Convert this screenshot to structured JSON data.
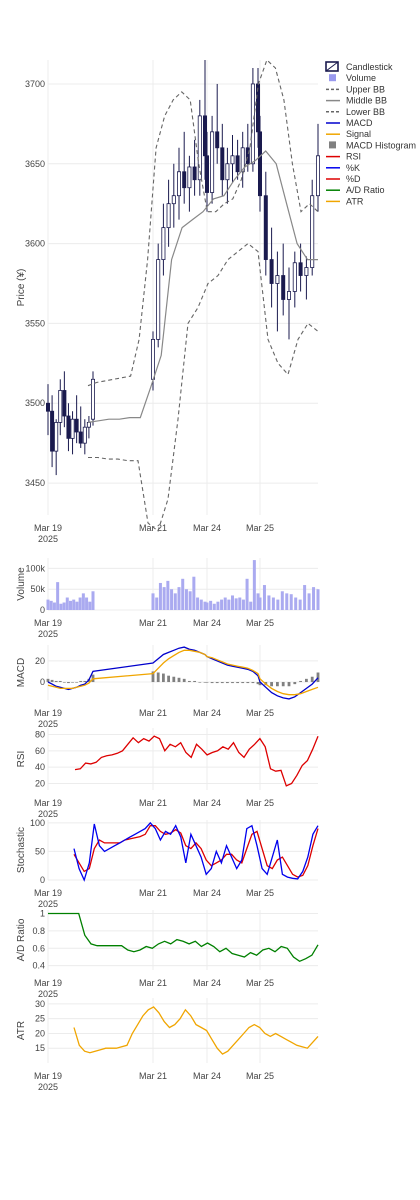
{
  "chart_data": {
    "type": "line",
    "x_ticks": [
      {
        "date": "2025-03-19",
        "label": "Mar 19",
        "sub": "2025"
      },
      {
        "date": "2025-03-21",
        "label": "Mar 21",
        "sub": ""
      },
      {
        "date": "2025-03-24",
        "label": "Mar 24",
        "sub": ""
      },
      {
        "date": "2025-03-25",
        "label": "Mar 25",
        "sub": ""
      }
    ],
    "legend": [
      {
        "name": "Candlestick",
        "symbol": "box",
        "color": "#1a1a4e"
      },
      {
        "name": "Volume",
        "symbol": "square",
        "color": "#9999ee"
      },
      {
        "name": "Upper BB",
        "symbol": "dash",
        "color": "#666666"
      },
      {
        "name": "Middle BB",
        "symbol": "line",
        "color": "#888888"
      },
      {
        "name": "Lower BB",
        "symbol": "dash",
        "color": "#666666"
      },
      {
        "name": "MACD",
        "symbol": "line",
        "color": "#0000cc"
      },
      {
        "name": "Signal",
        "symbol": "line",
        "color": "#f0a500"
      },
      {
        "name": "MACD Histogram",
        "symbol": "square",
        "color": "#808080"
      },
      {
        "name": "RSI",
        "symbol": "line",
        "color": "#dd0000"
      },
      {
        "name": "%K",
        "symbol": "line",
        "color": "#0000ee"
      },
      {
        "name": "%D",
        "symbol": "line",
        "color": "#dd0000"
      },
      {
        "name": "A/D Ratio",
        "symbol": "line",
        "color": "#008000"
      },
      {
        "name": "ATR",
        "symbol": "line",
        "color": "#f0a500"
      }
    ],
    "panels": [
      {
        "id": "price",
        "ylabel": "Price (¥)",
        "yticks": [
          3450,
          3500,
          3550,
          3600,
          3650,
          3700
        ],
        "ylim": [
          3430,
          3715
        ],
        "candles_ohlc": [
          [
            3500,
            3512,
            3480,
            3495
          ],
          [
            3495,
            3505,
            3460,
            3470
          ],
          [
            3470,
            3490,
            3455,
            3488
          ],
          [
            3488,
            3515,
            3480,
            3508
          ],
          [
            3508,
            3520,
            3485,
            3492
          ],
          [
            3492,
            3500,
            3470,
            3478
          ],
          [
            3478,
            3495,
            3468,
            3490
          ],
          [
            3490,
            3505,
            3475,
            3482
          ],
          [
            3482,
            3498,
            3472,
            3475
          ],
          [
            3475,
            3490,
            3468,
            3485
          ],
          [
            3485,
            3492,
            3478,
            3488
          ],
          [
            3490,
            3520,
            3486,
            3515
          ],
          [
            3515,
            3545,
            3508,
            3540
          ],
          [
            3540,
            3600,
            3535,
            3590
          ],
          [
            3590,
            3625,
            3580,
            3610
          ],
          [
            3610,
            3640,
            3598,
            3625
          ],
          [
            3625,
            3650,
            3610,
            3630
          ],
          [
            3630,
            3660,
            3615,
            3645
          ],
          [
            3645,
            3670,
            3625,
            3635
          ],
          [
            3635,
            3655,
            3620,
            3648
          ],
          [
            3648,
            3665,
            3630,
            3640
          ],
          [
            3640,
            3690,
            3630,
            3680
          ],
          [
            3680,
            3715,
            3640,
            3655
          ],
          [
            3655,
            3670,
            3620,
            3632
          ],
          [
            3632,
            3680,
            3625,
            3670
          ],
          [
            3670,
            3700,
            3650,
            3660
          ],
          [
            3660,
            3675,
            3630,
            3640
          ],
          [
            3640,
            3660,
            3625,
            3650
          ],
          [
            3650,
            3668,
            3638,
            3655
          ],
          [
            3655,
            3665,
            3640,
            3645
          ],
          [
            3645,
            3670,
            3635,
            3660
          ],
          [
            3660,
            3675,
            3645,
            3650
          ],
          [
            3650,
            3710,
            3645,
            3700
          ],
          [
            3700,
            3710,
            3660,
            3670
          ],
          [
            3670,
            3680,
            3620,
            3630
          ],
          [
            3630,
            3645,
            3580,
            3590
          ],
          [
            3590,
            3610,
            3560,
            3575
          ],
          [
            3575,
            3595,
            3545,
            3580
          ],
          [
            3580,
            3600,
            3555,
            3565
          ],
          [
            3565,
            3585,
            3540,
            3570
          ],
          [
            3570,
            3595,
            3560,
            3588
          ],
          [
            3588,
            3600,
            3570,
            3580
          ],
          [
            3580,
            3592,
            3565,
            3585
          ],
          [
            3585,
            3640,
            3580,
            3630
          ],
          [
            3630,
            3675,
            3620,
            3655
          ]
        ],
        "upper_bb": [
          3511,
          3513,
          3514,
          3515,
          3516,
          3517,
          3540,
          3590,
          3660,
          3680,
          3690,
          3695,
          3690,
          3650,
          3620,
          3620,
          3625,
          3628,
          3640,
          3660,
          3700,
          3715,
          3710,
          3690,
          3650,
          3620,
          3625,
          3620
        ],
        "middle_bb": [
          3488,
          3489,
          3490,
          3490,
          3491,
          3491,
          3510,
          3530,
          3590,
          3610,
          3615,
          3620,
          3628,
          3630,
          3640,
          3648,
          3652,
          3658,
          3650,
          3625,
          3600,
          3590,
          3590
        ],
        "lower_bb": [
          3466,
          3466,
          3465,
          3465,
          3464,
          3464,
          3425,
          3420,
          3440,
          3490,
          3550,
          3560,
          3575,
          3580,
          3590,
          3595,
          3600,
          3595,
          3540,
          3525,
          3518,
          3540,
          3550,
          3545
        ]
      },
      {
        "id": "volume",
        "ylabel": "Volume",
        "yticks": [
          0,
          50000,
          100000
        ],
        "ytick_labels": [
          "0",
          "50k",
          "100k"
        ],
        "ylim": [
          0,
          125000
        ],
        "values": [
          25000,
          22000,
          18000,
          67000,
          15000,
          18000,
          30000,
          22000,
          25000,
          20000,
          30000,
          40000,
          30000,
          20000,
          45000,
          40000,
          30000,
          65000,
          55000,
          70000,
          50000,
          40000,
          55000,
          75000,
          50000,
          45000,
          80000,
          30000,
          25000,
          20000,
          18000,
          22000,
          15000,
          20000,
          25000,
          30000,
          25000,
          35000,
          28000,
          30000,
          25000,
          75000,
          20000,
          120000,
          40000,
          30000,
          60000,
          35000,
          30000,
          25000,
          45000,
          40000,
          38000,
          30000,
          25000,
          60000,
          40000,
          55000,
          50000
        ]
      },
      {
        "id": "macd",
        "ylabel": "MACD",
        "yticks": [
          0,
          20
        ],
        "ylim": [
          -17,
          35
        ],
        "macd": [
          0,
          -2,
          -4,
          -5,
          -6,
          -7,
          -6,
          -5,
          -3,
          -2,
          2,
          10,
          18,
          22,
          26,
          28,
          30,
          32,
          33,
          31,
          30,
          28,
          26,
          24,
          22,
          20,
          18,
          16,
          15,
          14,
          13,
          12,
          10,
          6,
          0,
          -5,
          -10,
          -13,
          -15,
          -16,
          -14,
          -10,
          -6,
          -2,
          4
        ],
        "signal": [
          -3,
          -4,
          -5,
          -6,
          -6,
          -6,
          -6,
          -5,
          -4,
          -3,
          -1,
          3,
          8,
          13,
          18,
          22,
          25,
          28,
          30,
          30,
          29,
          28,
          26,
          24,
          23,
          21,
          19,
          17,
          16,
          15,
          14,
          13,
          11,
          8,
          3,
          -2,
          -6,
          -9,
          -11,
          -12,
          -12,
          -11,
          -9,
          -7,
          -5
        ],
        "histogram": [
          3,
          2,
          1,
          1,
          0,
          -1,
          0,
          0,
          1,
          1,
          3,
          7,
          10,
          9,
          8,
          6,
          5,
          4,
          3,
          1,
          1,
          0,
          0,
          0,
          -1,
          -1,
          -1,
          -1,
          -1,
          -1,
          -1,
          -1,
          -1,
          -2,
          -3,
          -3,
          -4,
          -4,
          -4,
          -4,
          -2,
          1,
          3,
          5,
          9
        ]
      },
      {
        "id": "rsi",
        "ylabel": "RSI",
        "yticks": [
          20,
          40,
          60,
          80
        ],
        "ylim": [
          12,
          88
        ],
        "values": [
          37,
          38,
          45,
          44,
          46,
          52,
          54,
          55,
          57,
          60,
          68,
          76,
          70,
          75,
          72,
          78,
          75,
          60,
          68,
          65,
          70,
          58,
          52,
          68,
          62,
          55,
          58,
          60,
          65,
          62,
          70,
          58,
          52,
          62,
          68,
          75,
          65,
          38,
          35,
          36,
          17,
          20,
          30,
          42,
          48,
          62,
          78
        ]
      },
      {
        "id": "stochastic",
        "ylabel": "Stochastic",
        "yticks": [
          0,
          50,
          100
        ],
        "ylim": [
          0,
          105
        ],
        "k": [
          55,
          20,
          0,
          30,
          98,
          60,
          50,
          55,
          60,
          65,
          70,
          75,
          80,
          85,
          90,
          100,
          90,
          70,
          85,
          80,
          95,
          75,
          30,
          80,
          60,
          40,
          10,
          20,
          50,
          30,
          60,
          40,
          20,
          35,
          90,
          95,
          60,
          20,
          10,
          40,
          70,
          10,
          5,
          3,
          2,
          15,
          40,
          80,
          95
        ],
        "d": [
          45,
          30,
          15,
          20,
          55,
          70,
          65,
          65,
          65,
          65,
          70,
          72,
          74,
          76,
          80,
          95,
          95,
          85,
          80,
          82,
          88,
          82,
          60,
          55,
          65,
          55,
          35,
          25,
          30,
          35,
          45,
          45,
          35,
          30,
          55,
          80,
          85,
          55,
          25,
          20,
          35,
          40,
          25,
          10,
          5,
          8,
          25,
          60,
          90
        ]
      },
      {
        "id": "ad_ratio",
        "ylabel": "A/D Ratio",
        "yticks": [
          0.4,
          0.6,
          0.8,
          1
        ],
        "ytick_labels": [
          "0.4",
          "0.6",
          "0.8",
          "1"
        ],
        "ylim": [
          0.35,
          1.04
        ],
        "values": [
          1,
          1,
          1,
          1,
          1,
          1,
          0.75,
          0.65,
          0.63,
          0.63,
          0.63,
          0.63,
          0.63,
          0.58,
          0.56,
          0.58,
          0.62,
          0.6,
          0.65,
          0.68,
          0.65,
          0.7,
          0.68,
          0.65,
          0.68,
          0.62,
          0.66,
          0.62,
          0.56,
          0.6,
          0.54,
          0.52,
          0.5,
          0.55,
          0.52,
          0.58,
          0.6,
          0.56,
          0.62,
          0.6,
          0.5,
          0.45,
          0.48,
          0.52,
          0.64
        ]
      },
      {
        "id": "atr",
        "ylabel": "ATR",
        "yticks": [
          15,
          20,
          25,
          30
        ],
        "ylim": [
          10,
          32
        ],
        "values": [
          22,
          16,
          14,
          13.5,
          14,
          14.5,
          15,
          15,
          15,
          15.5,
          16,
          20,
          23,
          26,
          28,
          29,
          27,
          24,
          22,
          23,
          25,
          28,
          26,
          23,
          22,
          21,
          18,
          15,
          13,
          14,
          16,
          18,
          20,
          22,
          23,
          22,
          20,
          19,
          20,
          19,
          18,
          17,
          16,
          15.5,
          15,
          17,
          19
        ]
      }
    ]
  }
}
